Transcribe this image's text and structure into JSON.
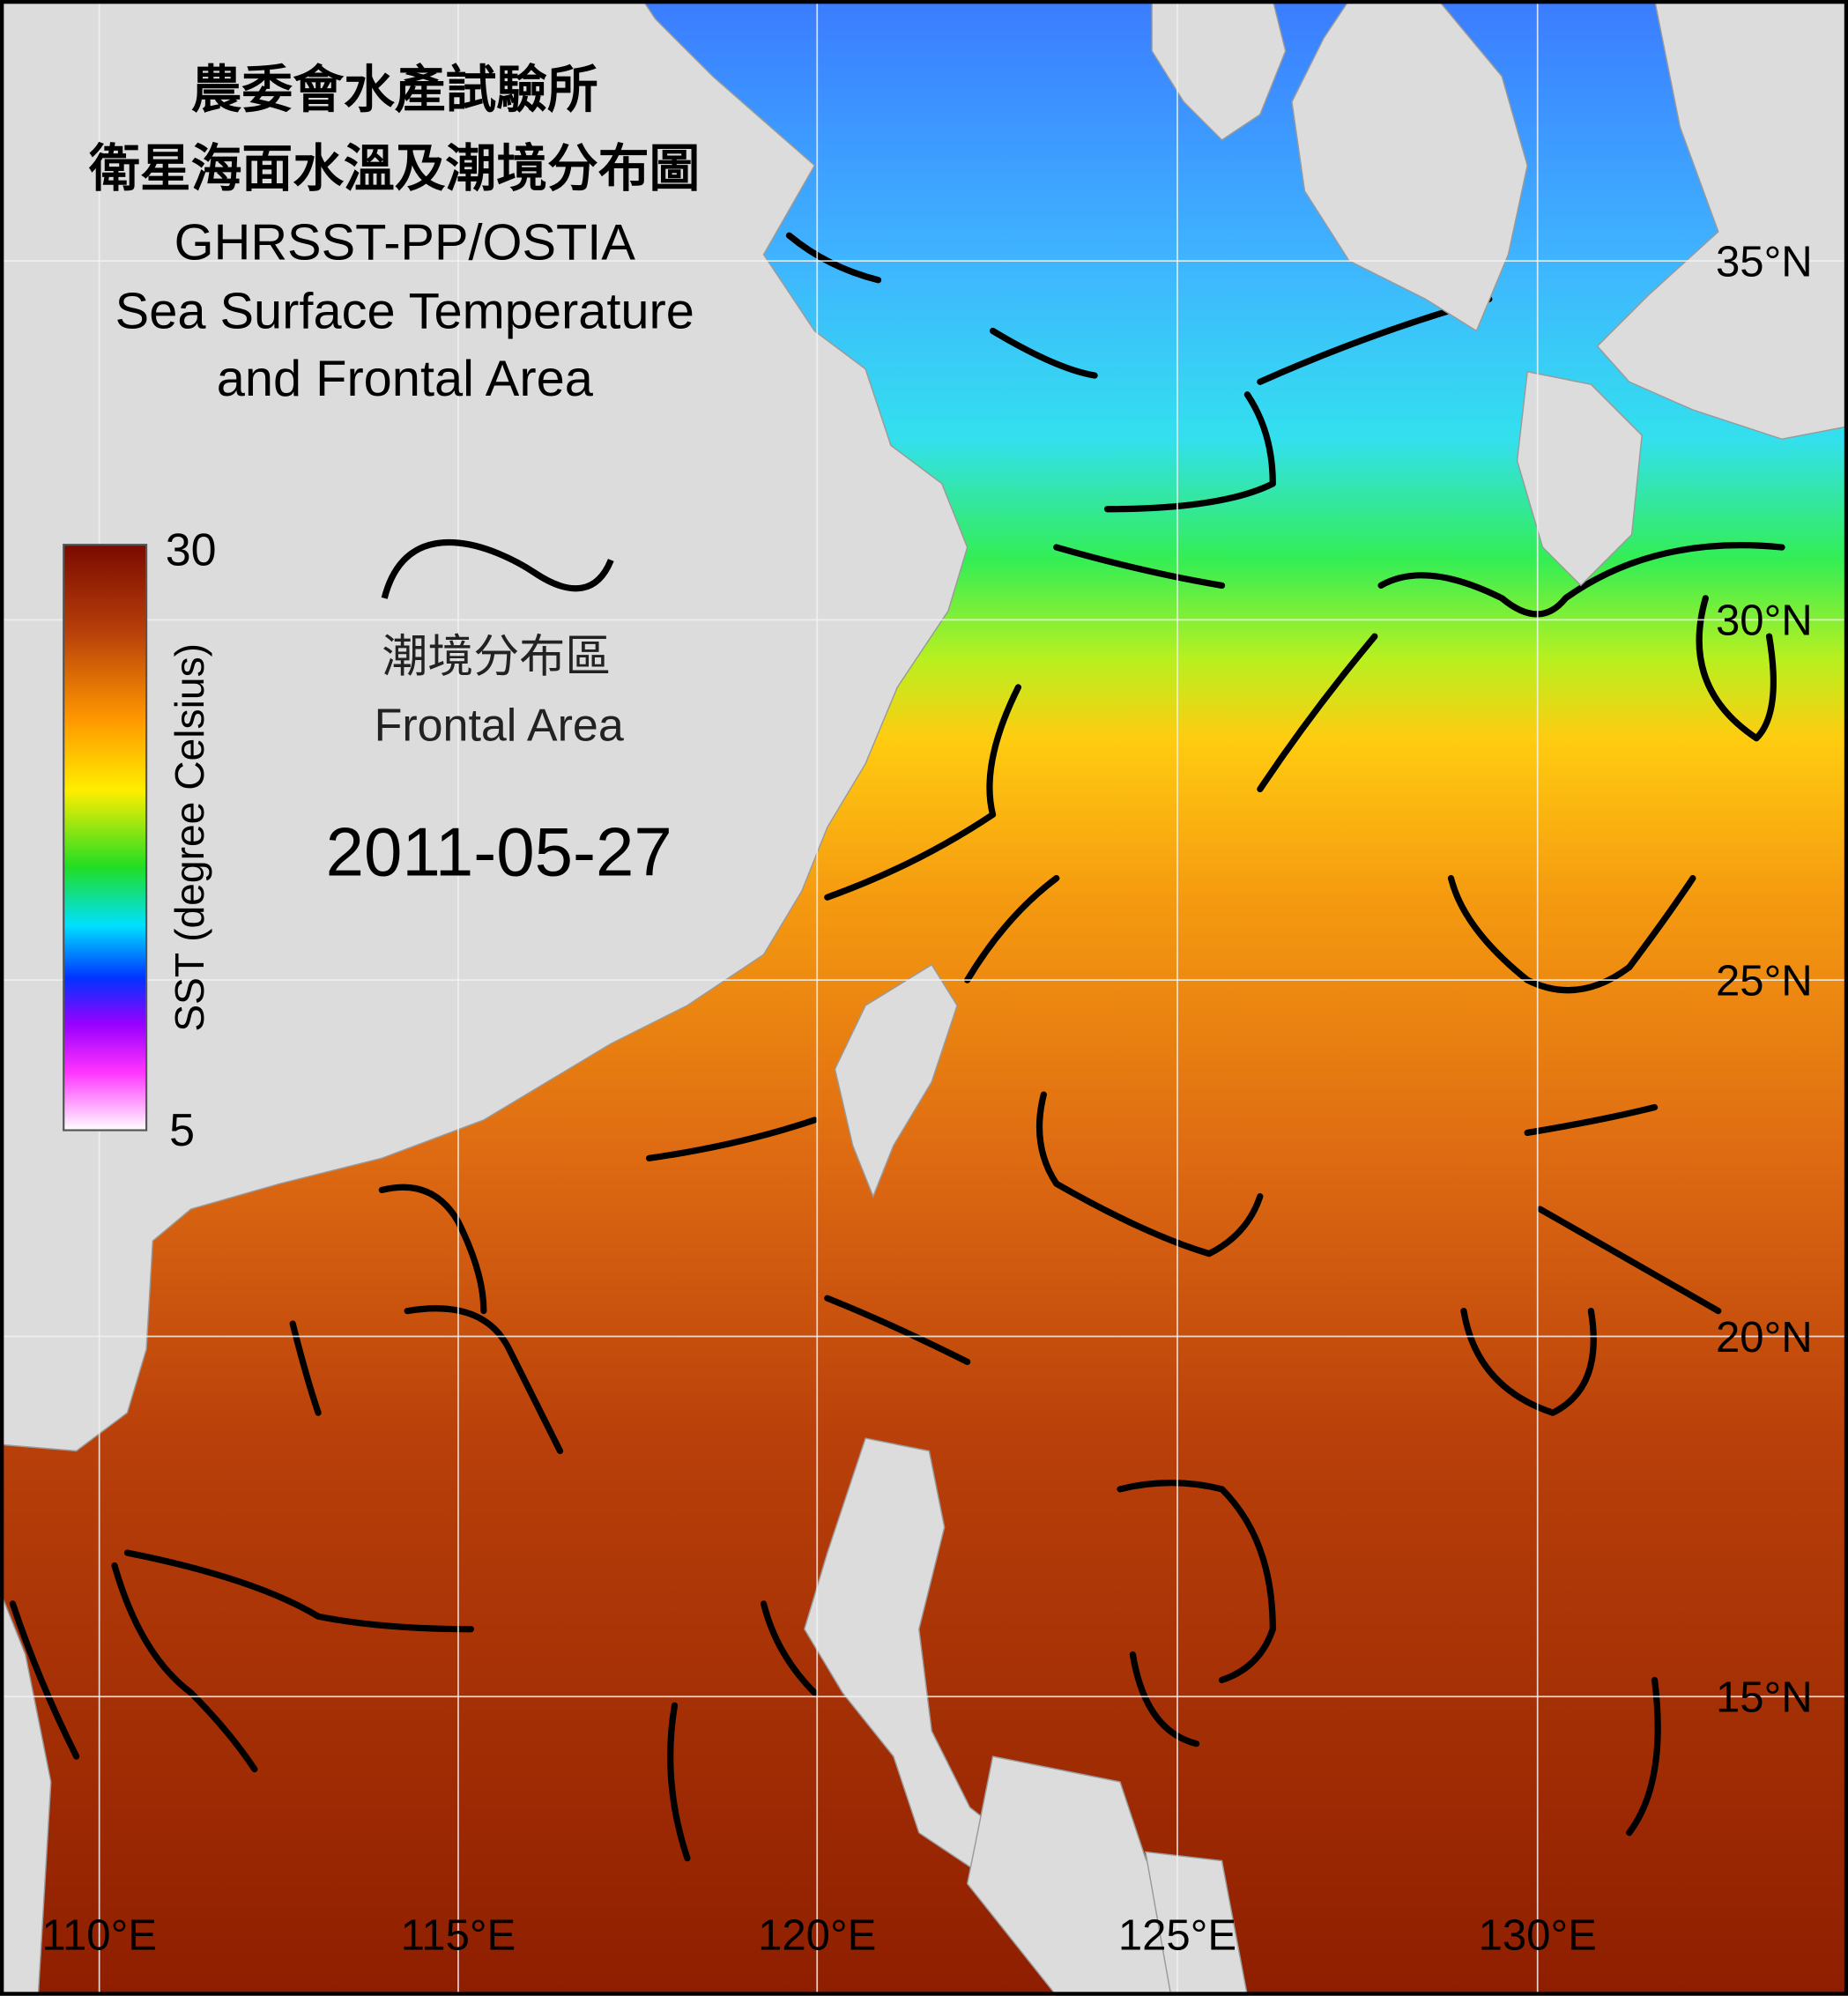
{
  "title": [
    "農委會水產試驗所",
    "衛星海面水溫及潮境分布圖",
    "GHRSST-PP/OSTIA",
    "Sea Surface Temperature",
    "and Frontal Area"
  ],
  "colorbar": {
    "label": "SST (degree Celsius)",
    "max": 30,
    "min": 5
  },
  "legend": {
    "label_zh": "潮境分布區",
    "label_en": "Frontal Area"
  },
  "date": "2011-05-27",
  "longitude_labels": [
    "110°E",
    "115°E",
    "120°E",
    "125°E",
    "130°E"
  ],
  "latitude_labels": [
    "35°N",
    "30°N",
    "25°N",
    "20°N",
    "15°N"
  ]
}
